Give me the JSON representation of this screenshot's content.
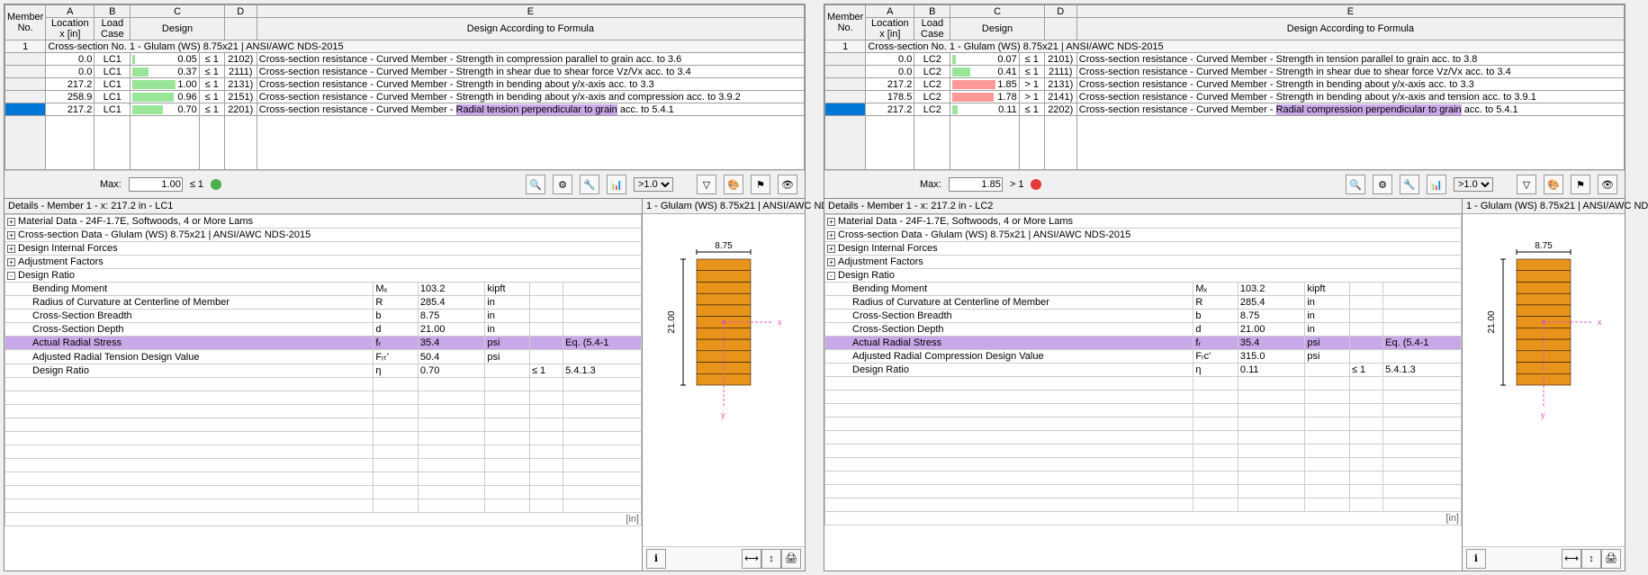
{
  "panels": [
    {
      "id": "left",
      "headers": {
        "member": "Member\nNo.",
        "A": "A",
        "B": "B",
        "C": "C",
        "D": "D",
        "E": "E",
        "loc": "Location\nx [in]",
        "load": "Load\nCase",
        "design": "Design",
        "formula": "Design According to Formula"
      },
      "section_row": "Cross-section No.  1 - Glulam (WS) 8.75x21 | ANSI/AWC NDS-2015",
      "member_no": "1",
      "rows": [
        {
          "x": "0.0",
          "lc": "LC1",
          "ratio": "0.05",
          "cmp": "≤ 1",
          "bar": {
            "color": "green",
            "w": 3
          },
          "code": "2102)",
          "desc": "Cross-section resistance - Curved Member - Strength in compression parallel to grain acc. to 3.6"
        },
        {
          "x": "0.0",
          "lc": "LC1",
          "ratio": "0.37",
          "cmp": "≤ 1",
          "bar": {
            "color": "green",
            "w": 18
          },
          "code": "2111)",
          "desc": "Cross-section resistance - Curved Member - Strength in shear due to shear force Vz/Vx acc. to 3.4"
        },
        {
          "x": "217.2",
          "lc": "LC1",
          "ratio": "1.00",
          "cmp": "≤ 1",
          "bar": {
            "color": "green",
            "w": 48
          },
          "code": "2131)",
          "desc": "Cross-section resistance - Curved Member - Strength in bending about y/x-axis acc. to 3.3"
        },
        {
          "x": "258.9",
          "lc": "LC1",
          "ratio": "0.96",
          "cmp": "≤ 1",
          "bar": {
            "color": "green",
            "w": 46
          },
          "code": "2151)",
          "desc": "Cross-section resistance - Curved Member - Strength in bending about y/x-axis and compression acc. to 3.9.2"
        },
        {
          "x": "217.2",
          "lc": "LC1",
          "ratio": "0.70",
          "cmp": "≤ 1",
          "bar": {
            "color": "green",
            "w": 34
          },
          "code": "2201)",
          "desc_pre": "Cross-section resistance - Curved Member - ",
          "desc_hl": "Radial tension perpendicular to grain",
          "desc_post": " acc. to 5.4.1",
          "selected": true
        }
      ],
      "max": {
        "label": "Max:",
        "value": "1.00",
        "cmp": "≤ 1",
        "ok": true
      },
      "filter_default": ">1.0",
      "details_title": "Details - Member 1 - x: 217.2 in - LC1",
      "tree_top": [
        {
          "p": "+",
          "t": "Material Data - 24F-1.7E, Softwoods, 4 or More Lams"
        },
        {
          "p": "+",
          "t": "Cross-section Data - Glulam (WS) 8.75x21 | ANSI/AWC NDS-2015"
        },
        {
          "p": "+",
          "t": "Design Internal Forces"
        },
        {
          "p": "+",
          "t": "Adjustment Factors"
        },
        {
          "p": "-",
          "t": "Design Ratio"
        }
      ],
      "dr": [
        {
          "n": "Bending Moment",
          "s": "Mₓ",
          "v": "103.2",
          "u": "kipft",
          "e": ""
        },
        {
          "n": "Radius of Curvature at Centerline of Member",
          "s": "R",
          "v": "285.4",
          "u": "in",
          "e": ""
        },
        {
          "n": "Cross-Section Breadth",
          "s": "b",
          "v": "8.75",
          "u": "in",
          "e": ""
        },
        {
          "n": "Cross-Section Depth",
          "s": "d",
          "v": "21.00",
          "u": "in",
          "e": ""
        },
        {
          "n": "Actual Radial Stress",
          "s": "fᵣ",
          "v": "35.4",
          "u": "psi",
          "e": "Eq. (5.4-1",
          "hl": true
        },
        {
          "n": "Adjusted Radial Tension Design Value",
          "s": "Fᵣₜ'",
          "v": "50.4",
          "u": "psi",
          "e": ""
        },
        {
          "n": "Design Ratio",
          "s": "η",
          "v": "0.70",
          "u": "",
          "cmp": "≤ 1",
          "e": "5.4.1.3"
        }
      ],
      "preview_title": "1 - Glulam (WS) 8.75x21 | ANSI/AWC ND",
      "sect": {
        "b": "8.75",
        "d": "21.00",
        "lams": 11,
        "fill": "#e8941a",
        "stroke": "#000",
        "axis": "#e050c0"
      }
    },
    {
      "id": "right",
      "headers": {
        "member": "Member\nNo.",
        "A": "A",
        "B": "B",
        "C": "C",
        "D": "D",
        "E": "E",
        "loc": "Location\nx [in]",
        "load": "Load\nCase",
        "design": "Design",
        "formula": "Design According to Formula"
      },
      "section_row": "Cross-section No.  1 - Glulam (WS) 8.75x21 | ANSI/AWC NDS-2015",
      "member_no": "1",
      "rows": [
        {
          "x": "0.0",
          "lc": "LC2",
          "ratio": "0.07",
          "cmp": "≤ 1",
          "bar": {
            "color": "green",
            "w": 4
          },
          "code": "2101)",
          "desc": "Cross-section resistance - Curved Member - Strength in tension parallel to grain acc. to 3.8"
        },
        {
          "x": "0.0",
          "lc": "LC2",
          "ratio": "0.41",
          "cmp": "≤ 1",
          "bar": {
            "color": "green",
            "w": 20
          },
          "code": "2111)",
          "desc": "Cross-section resistance - Curved Member - Strength in shear due to shear force Vz/Vx acc. to 3.4"
        },
        {
          "x": "217.2",
          "lc": "LC2",
          "ratio": "1.85",
          "cmp": "> 1",
          "bar": {
            "color": "red",
            "w": 48
          },
          "code": "2131)",
          "desc": "Cross-section resistance - Curved Member - Strength in bending about y/x-axis acc. to 3.3"
        },
        {
          "x": "178.5",
          "lc": "LC2",
          "ratio": "1.78",
          "cmp": "> 1",
          "bar": {
            "color": "red",
            "w": 46
          },
          "code": "2141)",
          "desc": "Cross-section resistance - Curved Member - Strength in bending about y/x-axis and tension acc. to 3.9.1"
        },
        {
          "x": "217.2",
          "lc": "LC2",
          "ratio": "0.11",
          "cmp": "≤ 1",
          "bar": {
            "color": "green",
            "w": 6
          },
          "code": "2202)",
          "desc_pre": "Cross-section resistance - Curved Member - ",
          "desc_hl": "Radial compression perpendicular to grain",
          "desc_post": " acc. to 5.4.1",
          "selected": true
        }
      ],
      "max": {
        "label": "Max:",
        "value": "1.85",
        "cmp": "> 1",
        "ok": false
      },
      "filter_default": ">1.0",
      "details_title": "Details - Member 1 - x: 217.2 in - LC2",
      "tree_top": [
        {
          "p": "+",
          "t": "Material Data - 24F-1.7E, Softwoods, 4 or More Lams"
        },
        {
          "p": "+",
          "t": "Cross-section Data - Glulam (WS) 8.75x21 | ANSI/AWC NDS-2015"
        },
        {
          "p": "+",
          "t": "Design Internal Forces"
        },
        {
          "p": "+",
          "t": "Adjustment Factors"
        },
        {
          "p": "-",
          "t": "Design Ratio"
        }
      ],
      "dr": [
        {
          "n": "Bending Moment",
          "s": "Mₓ",
          "v": "103.2",
          "u": "kipft",
          "e": ""
        },
        {
          "n": "Radius of Curvature at Centerline of Member",
          "s": "R",
          "v": "285.4",
          "u": "in",
          "e": ""
        },
        {
          "n": "Cross-Section Breadth",
          "s": "b",
          "v": "8.75",
          "u": "in",
          "e": ""
        },
        {
          "n": "Cross-Section Depth",
          "s": "d",
          "v": "21.00",
          "u": "in",
          "e": ""
        },
        {
          "n": "Actual Radial Stress",
          "s": "fᵣ",
          "v": "35.4",
          "u": "psi",
          "e": "Eq. (5.4-1",
          "hl": true
        },
        {
          "n": "Adjusted Radial Compression Design Value",
          "s": "Fᵣc'",
          "v": "315.0",
          "u": "psi",
          "e": ""
        },
        {
          "n": "Design Ratio",
          "s": "η",
          "v": "0.11",
          "u": "",
          "cmp": "≤ 1",
          "e": "5.4.1.3"
        }
      ],
      "preview_title": "1 - Glulam (WS) 8.75x21 | ANSI/AWC ND",
      "sect": {
        "b": "8.75",
        "d": "21.00",
        "lams": 11,
        "fill": "#e8941a",
        "stroke": "#000",
        "axis": "#e050c0"
      }
    }
  ],
  "unit_label": "[in]",
  "toolbar_icons": [
    "filter-type-icon",
    "filter-ratio-icon",
    "filter-member-icon",
    "chart-icon"
  ],
  "toolbar_icons2": [
    "funnel-icon",
    "palette-icon",
    "flag-icon",
    "eye-icon"
  ],
  "footer_icons": [
    "info-icon",
    "dim-a-icon",
    "dim-b-icon",
    "print-icon"
  ]
}
